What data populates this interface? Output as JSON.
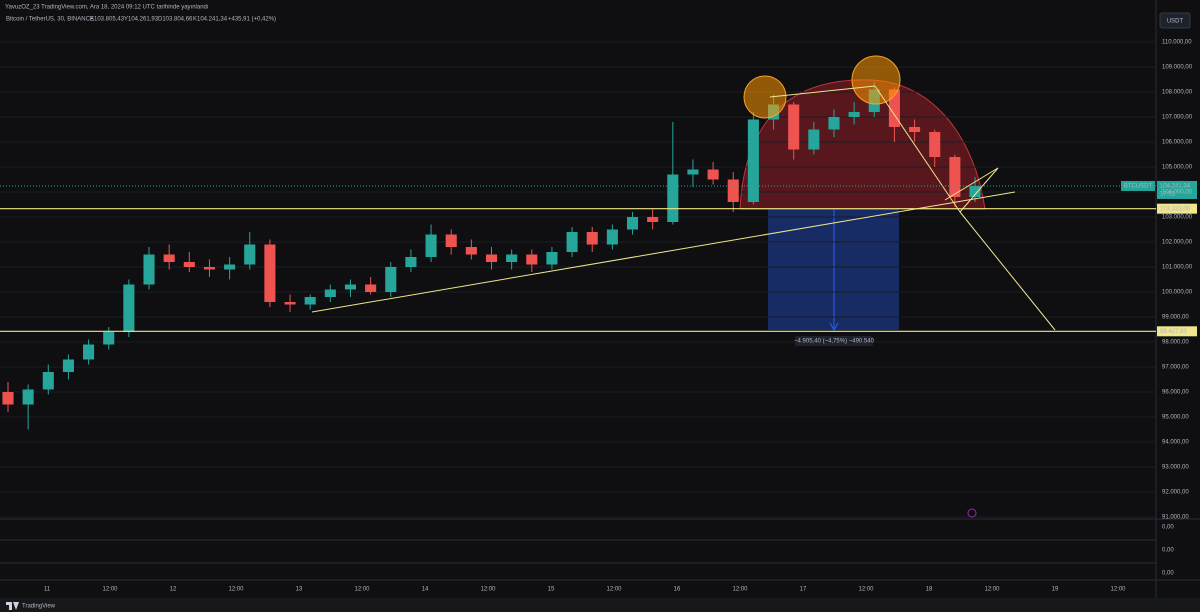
{
  "header": {
    "title": "YavuzOZ_23 TradingView.com, Ara 18, 2024 09:12 UTC tarihinde yayınlandı"
  },
  "symbol_bar": {
    "name": "Bitcoin / TetherUS, 30, BINANCE",
    "ohlc": [
      "A103.805,43",
      "Y104.261,93",
      "D103.804,66",
      "K104.241,34"
    ],
    "change": "+435,91 (+0,42%)"
  },
  "currency_button": "USDT",
  "chart_data": {
    "type": "candlestick",
    "open": [
      96000,
      95500,
      96100,
      96800,
      97300,
      97900,
      98400,
      100300,
      101500,
      101200,
      101000,
      100900,
      101100,
      101900,
      99600,
      99500,
      99800,
      100100,
      100300,
      100000,
      101000,
      101400,
      102300,
      101800,
      101500,
      101200,
      101500,
      101100,
      101600,
      102400,
      101900,
      102500,
      103000,
      102800,
      104700,
      104900,
      104500,
      103600,
      106900,
      107500,
      105700,
      106500,
      107000,
      107200,
      108100,
      106600,
      106400,
      105400,
      103800
    ],
    "high": [
      96400,
      96300,
      97100,
      97500,
      98100,
      98600,
      100500,
      101800,
      101900,
      101600,
      101300,
      101400,
      102400,
      102100,
      99900,
      99900,
      100300,
      100500,
      100600,
      101200,
      101700,
      102700,
      102500,
      102100,
      101800,
      101700,
      101700,
      101800,
      102600,
      102600,
      102700,
      103200,
      103300,
      106800,
      105300,
      105200,
      104800,
      107200,
      107900,
      107600,
      106800,
      107300,
      107600,
      108400,
      108200,
      106900,
      106500,
      105500,
      104600
    ],
    "low": [
      95200,
      94500,
      95900,
      96500,
      97100,
      97700,
      98200,
      100100,
      100900,
      100800,
      100600,
      100500,
      100900,
      99400,
      99200,
      99300,
      99600,
      99800,
      99900,
      99800,
      100800,
      101200,
      101500,
      101300,
      100900,
      100900,
      100800,
      100900,
      101400,
      101600,
      101700,
      102300,
      102500,
      102700,
      104200,
      104300,
      103200,
      103500,
      106500,
      105300,
      105500,
      106200,
      106700,
      107000,
      106000,
      106000,
      105000,
      103400,
      103600
    ],
    "close": [
      95500,
      96100,
      96800,
      97300,
      97900,
      98400,
      100300,
      101500,
      101200,
      101000,
      100900,
      101100,
      101900,
      99600,
      99500,
      99800,
      100100,
      100300,
      100000,
      101000,
      101400,
      102300,
      101800,
      101500,
      101200,
      101500,
      101100,
      101600,
      102400,
      101900,
      102500,
      103000,
      102800,
      104700,
      104900,
      104500,
      103600,
      106900,
      107500,
      105700,
      106500,
      107000,
      107200,
      108100,
      106600,
      106400,
      105400,
      103800,
      104241.34
    ],
    "up_color": "#26a69a",
    "down_color": "#ef5350",
    "ylim": [
      90920,
      111680
    ],
    "yticks": [
      {
        "value": 110000,
        "label": "110.000,00"
      },
      {
        "value": 109000,
        "label": "109.000,00"
      },
      {
        "value": 108000,
        "label": "108.000,00"
      },
      {
        "value": 107000,
        "label": "107.000,00"
      },
      {
        "value": 106000,
        "label": "106.000,00"
      },
      {
        "value": 105000,
        "label": "105.000,00"
      },
      {
        "value": 104000,
        "label": "104.000,00"
      },
      {
        "value": 103000,
        "label": "103.000,00"
      },
      {
        "value": 102000,
        "label": "102.000,00"
      },
      {
        "value": 101000,
        "label": "101.000,00"
      },
      {
        "value": 100000,
        "label": "100.000,00"
      },
      {
        "value": 99000,
        "label": "99.000,00"
      },
      {
        "value": 98000,
        "label": "98.000,00"
      },
      {
        "value": 97000,
        "label": "97.000,00"
      },
      {
        "value": 96000,
        "label": "96.000,00"
      },
      {
        "value": 95000,
        "label": "95.000,00"
      },
      {
        "value": 94000,
        "label": "94.000,00"
      },
      {
        "value": 93000,
        "label": "93.000,00"
      },
      {
        "value": 92000,
        "label": "92.000,00"
      },
      {
        "value": 91000,
        "label": "91.000,00"
      }
    ],
    "time_labels": [
      "11",
      "12:00",
      "12",
      "12:00",
      "13",
      "12:00",
      "14",
      "12:00",
      "15",
      "12:00",
      "16",
      "12:00",
      "17",
      "12:00",
      "18",
      "12:00",
      "19",
      "12:00"
    ],
    "levels": [
      {
        "value": 103333,
        "label": "103.333,00"
      },
      {
        "value": 98427.83,
        "label": "98.427,83"
      }
    ],
    "last_price": {
      "value": 104241.34,
      "label": "104.241,34",
      "symbol": "BTCUSDT",
      "countdown": "17:01"
    },
    "measure_label": "−4.905,40 (−4,75%) −490.540",
    "pane_ticks": [
      "0,00",
      "0,00",
      "0,00"
    ]
  },
  "footer": {
    "brand": "TradingView"
  }
}
